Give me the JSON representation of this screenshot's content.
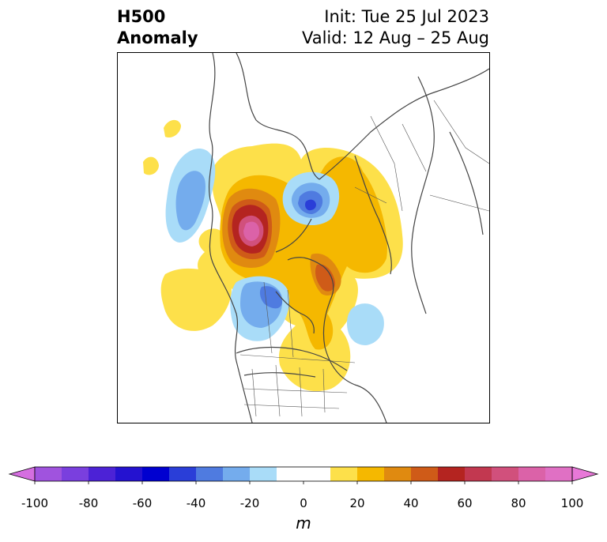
{
  "title": {
    "left_line1": "H500",
    "left_line2": "Anomaly",
    "right_line1": "Init: Tue 25 Jul 2023",
    "right_line2": "Valid: 12 Aug – 25 Aug"
  },
  "colorbar": {
    "unit": "m",
    "ticks": [
      "-100",
      "-80",
      "-60",
      "-40",
      "-20",
      "0",
      "20",
      "40",
      "60",
      "80",
      "100"
    ],
    "colors": {
      "neg_extend": "#d56ee0",
      "n90": "#a053de",
      "n80": "#7a3fde",
      "n70": "#4c22d6",
      "n60": "#2412d0",
      "n50": "#0000d0",
      "n40": "#2a3ed8",
      "n30": "#4f7be0",
      "n20": "#74aced",
      "n10": "#a9dcf8",
      "zero": "#ffffff",
      "p10": "#fde04a",
      "p20": "#f5b800",
      "p30": "#e08a10",
      "p40": "#cf5b18",
      "p50": "#b42420",
      "p60": "#c23850",
      "p70": "#d1507c",
      "p80": "#db62a8",
      "pos_extend": "#e878d8"
    }
  }
}
